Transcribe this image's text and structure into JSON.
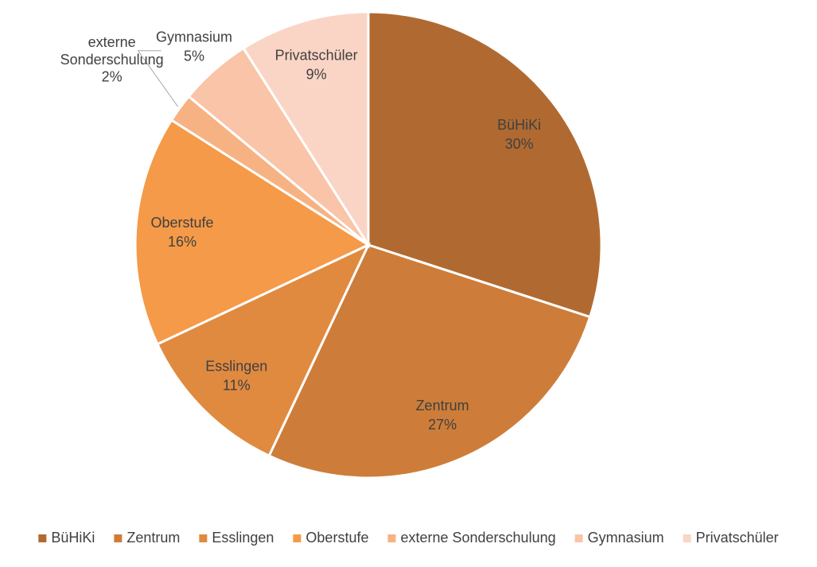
{
  "chart_data": {
    "type": "pie",
    "categories": [
      "BüHiKi",
      "Zentrum",
      "Esslingen",
      "Oberstufe",
      "externe Sonderschulung",
      "Gymnasium",
      "Privatschüler"
    ],
    "values": [
      30,
      27,
      11,
      16,
      2,
      5,
      9
    ],
    "value_labels": [
      "30%",
      "27%",
      "11%",
      "16%",
      "2%",
      "5%",
      "9%"
    ],
    "colors": [
      "#b06a31",
      "#cd7d39",
      "#e08a40",
      "#f59a48",
      "#f7b283",
      "#f9c4a8",
      "#fad5c5"
    ],
    "legend": "bottom"
  }
}
